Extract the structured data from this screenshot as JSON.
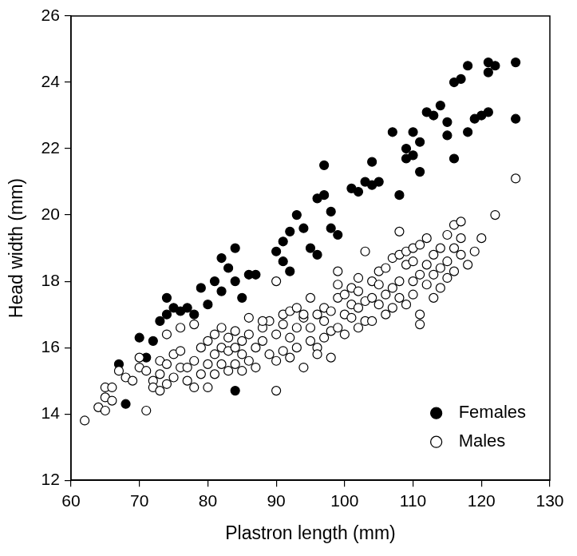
{
  "chart_data": {
    "type": "scatter",
    "x_label": "Plastron length (mm)",
    "y_label": "Head width (mm)",
    "xlim": [
      60,
      130
    ],
    "xticks": [
      60,
      70,
      80,
      90,
      100,
      110,
      120,
      130
    ],
    "ylim": [
      12,
      26
    ],
    "yticks": [
      12,
      14,
      16,
      18,
      20,
      22,
      24,
      26
    ],
    "grid": false,
    "legend": "lower right",
    "series": [
      {
        "name": "Females",
        "color": "#000000",
        "marker": "filled circle",
        "x": [
          67,
          68,
          70,
          71,
          72,
          73,
          74,
          74,
          75,
          76,
          77,
          78,
          79,
          80,
          81,
          82,
          82,
          83,
          84,
          84,
          84,
          85,
          86,
          87,
          90,
          91,
          91,
          92,
          92,
          93,
          94,
          95,
          96,
          96,
          97,
          97,
          98,
          98,
          99,
          101,
          102,
          103,
          104,
          104,
          105,
          107,
          108,
          109,
          109,
          110,
          110,
          111,
          111,
          112,
          113,
          114,
          115,
          115,
          116,
          116,
          117,
          118,
          118,
          119,
          120,
          121,
          121,
          122,
          125,
          125,
          121
        ],
        "values": [
          15.5,
          14.3,
          16.3,
          15.7,
          16.2,
          16.8,
          17.5,
          17.0,
          17.2,
          17.1,
          17.2,
          17.0,
          17.8,
          17.3,
          18.0,
          18.7,
          17.7,
          18.4,
          19.0,
          18.0,
          14.7,
          17.5,
          18.2,
          18.2,
          18.9,
          18.6,
          19.2,
          18.3,
          19.5,
          20.0,
          19.6,
          19.0,
          20.5,
          18.8,
          21.5,
          20.6,
          19.6,
          20.1,
          19.4,
          20.8,
          20.7,
          21.0,
          21.6,
          20.9,
          21.0,
          22.5,
          20.6,
          21.7,
          22.0,
          21.8,
          22.5,
          21.3,
          22.2,
          23.1,
          23.0,
          23.3,
          22.8,
          22.4,
          24.0,
          21.7,
          24.1,
          22.5,
          24.5,
          22.9,
          23.0,
          24.6,
          24.3,
          24.5,
          24.6,
          22.9,
          23.1
        ]
      },
      {
        "name": "Males",
        "color": "#000000",
        "marker": "open circle",
        "x": [
          62,
          64,
          65,
          65,
          65,
          66,
          67,
          68,
          69,
          70,
          71,
          71,
          72,
          72,
          73,
          73,
          73,
          74,
          74,
          74,
          75,
          75,
          76,
          76,
          77,
          77,
          78,
          78,
          78,
          79,
          79,
          80,
          80,
          81,
          81,
          81,
          82,
          82,
          82,
          83,
          83,
          83,
          84,
          84,
          84,
          85,
          85,
          85,
          86,
          86,
          86,
          87,
          87,
          88,
          88,
          89,
          89,
          90,
          90,
          90,
          90,
          91,
          91,
          91,
          92,
          92,
          92,
          93,
          93,
          94,
          94,
          94,
          95,
          95,
          96,
          96,
          96,
          97,
          97,
          97,
          98,
          98,
          98,
          99,
          99,
          99,
          99,
          100,
          100,
          100,
          101,
          101,
          101,
          102,
          102,
          102,
          103,
          103,
          103,
          104,
          104,
          104,
          105,
          105,
          105,
          106,
          106,
          106,
          107,
          107,
          107,
          108,
          108,
          108,
          108,
          109,
          109,
          109,
          110,
          110,
          110,
          110,
          111,
          111,
          111,
          111,
          112,
          112,
          112,
          113,
          113,
          113,
          114,
          114,
          114,
          115,
          115,
          115,
          116,
          116,
          116,
          117,
          117,
          117,
          118,
          119,
          120,
          122,
          125,
          66,
          70,
          76,
          80,
          88,
          93,
          95,
          102
        ],
        "values": [
          13.8,
          14.2,
          14.8,
          14.5,
          14.1,
          14.4,
          15.3,
          15.1,
          15.0,
          15.4,
          14.1,
          15.3,
          15.0,
          14.8,
          15.2,
          14.7,
          15.6,
          16.4,
          15.5,
          14.9,
          15.8,
          15.1,
          15.4,
          16.6,
          15.4,
          15.0,
          16.7,
          14.8,
          15.6,
          15.2,
          16.0,
          15.5,
          16.2,
          15.8,
          16.4,
          15.2,
          16.0,
          15.5,
          16.6,
          15.9,
          15.3,
          16.3,
          16.0,
          15.5,
          16.5,
          15.8,
          15.3,
          16.2,
          16.4,
          15.6,
          16.9,
          15.4,
          16.0,
          16.2,
          16.6,
          15.8,
          16.8,
          18.0,
          14.7,
          15.6,
          16.4,
          16.7,
          15.9,
          17.0,
          16.3,
          15.7,
          17.1,
          16.6,
          16.0,
          16.9,
          15.4,
          17.0,
          16.6,
          16.2,
          17.0,
          16.0,
          15.8,
          16.8,
          16.3,
          17.2,
          17.1,
          16.5,
          15.7,
          17.5,
          18.3,
          16.6,
          17.9,
          17.0,
          17.6,
          16.4,
          17.3,
          17.8,
          16.9,
          17.7,
          16.6,
          18.1,
          18.9,
          17.4,
          16.8,
          17.5,
          16.8,
          18.0,
          18.3,
          17.3,
          17.9,
          17.6,
          18.4,
          17.0,
          18.7,
          17.2,
          17.8,
          19.5,
          18.0,
          17.5,
          18.8,
          18.5,
          17.3,
          18.9,
          19.0,
          18.0,
          17.6,
          18.6,
          18.2,
          16.7,
          17.0,
          19.1,
          18.5,
          17.9,
          19.3,
          18.8,
          18.2,
          17.5,
          19.0,
          18.4,
          17.8,
          19.4,
          18.6,
          18.1,
          19.7,
          19.0,
          18.3,
          19.8,
          18.8,
          19.3,
          18.5,
          18.9,
          19.3,
          20.0,
          21.1,
          14.8,
          15.7,
          15.9,
          14.8,
          16.8,
          17.2,
          17.5,
          17.2
        ]
      }
    ]
  }
}
